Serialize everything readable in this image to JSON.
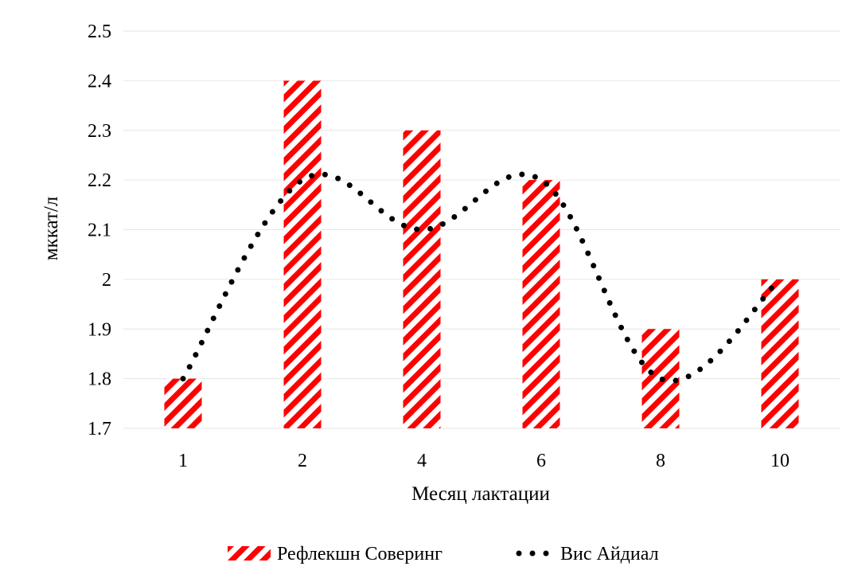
{
  "chart_data": {
    "type": "bar",
    "categories": [
      "1",
      "2",
      "4",
      "6",
      "8",
      "10"
    ],
    "series": [
      {
        "name": "Рефлекшн Соверинг",
        "type": "bar",
        "values": [
          1.8,
          2.4,
          2.3,
          2.2,
          1.9,
          2.0
        ],
        "color": "#ff0000",
        "pattern": "diagonal-stripes"
      },
      {
        "name": "Вис Айдиал",
        "type": "line",
        "style": "dotted",
        "values": [
          1.8,
          2.2,
          2.1,
          2.2,
          1.8,
          2.0
        ],
        "color": "#000000"
      }
    ],
    "y_ticks": [
      "1.7",
      "1.8",
      "1.9",
      "2",
      "2.1",
      "2.2",
      "2.3",
      "2.4",
      "2.5"
    ],
    "ylim": [
      1.7,
      2.5
    ],
    "xlabel": "Месяц лактации",
    "ylabel": "мккат/л",
    "grid": true,
    "legend_position": "bottom"
  }
}
